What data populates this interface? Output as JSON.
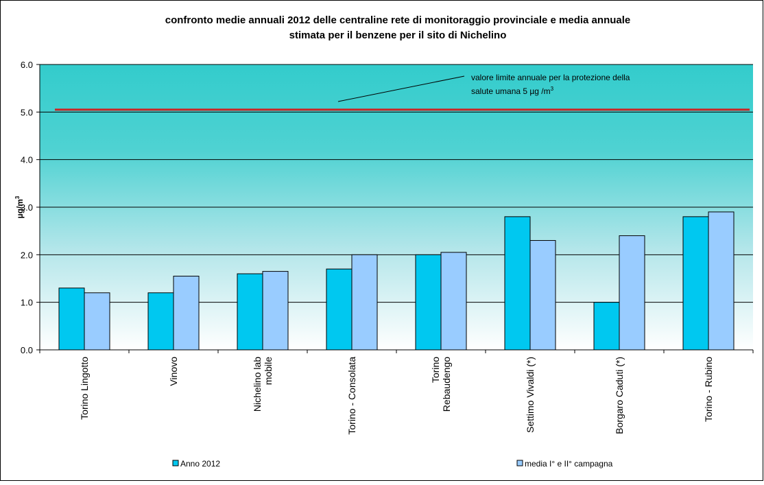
{
  "chart_data": {
    "type": "bar",
    "title_line1": "confronto medie annuali 2012 delle centraline rete di monitoraggio provinciale e media annuale",
    "title_line2": "stimata  per il benzene per il sito di Nichelino",
    "ylabel": "µg/m",
    "ylabel_sup": "3",
    "ylim": [
      0,
      6
    ],
    "yticks": [
      "0.0",
      "1.0",
      "2.0",
      "3.0",
      "4.0",
      "5.0",
      "6.0"
    ],
    "grid": true,
    "categories": [
      [
        "Torino Lingotto"
      ],
      [
        "Vinovo"
      ],
      [
        "Nichelino lab",
        "mobile"
      ],
      [
        "Torino - Consolata"
      ],
      [
        "Torino",
        "Rebaudengo"
      ],
      [
        "Settimo Vivaldi (*)"
      ],
      [
        "Borgaro Caduti (*)"
      ],
      [
        "Torino - Rubino"
      ]
    ],
    "series": [
      {
        "name": "Anno 2012",
        "values": [
          1.3,
          1.2,
          1.6,
          1.7,
          2.0,
          2.8,
          1.0,
          2.8
        ],
        "color": "#00c8f0"
      },
      {
        "name": "media I° e II° campagna",
        "values": [
          1.2,
          1.55,
          1.65,
          2.0,
          2.05,
          2.3,
          2.4,
          2.9
        ],
        "color": "#99ccff"
      }
    ],
    "limit_line": {
      "value": 5.05,
      "color": "#cc2222"
    },
    "annotation": {
      "line1": "valore limite annuale per la protezione della",
      "line2": "salute umana 5 µg /m",
      "line2_sup": "3"
    },
    "legend_position": "bottom",
    "plot_background": {
      "top": "#33cccc",
      "bottom": "#ffffff"
    }
  }
}
